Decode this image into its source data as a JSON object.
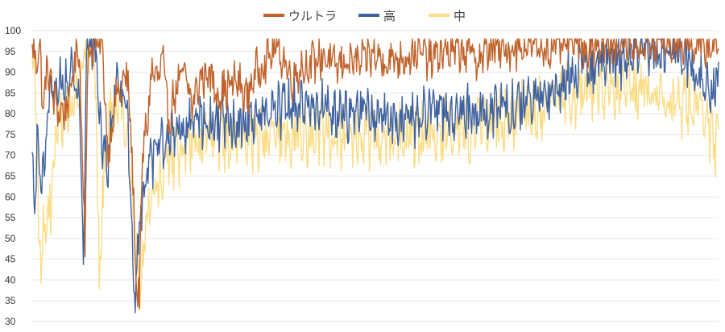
{
  "chart_data": {
    "type": "line",
    "title": "",
    "xlabel": "",
    "ylabel": "",
    "ylim": [
      30,
      100
    ],
    "yticks": [
      30,
      35,
      40,
      45,
      50,
      55,
      60,
      65,
      70,
      75,
      80,
      85,
      90,
      95,
      100
    ],
    "grid": "horizontal",
    "legend_position": "top-center",
    "sample_count": 860,
    "series": [
      {
        "name": "ウルトラ",
        "color": "#c0622a",
        "keypoints": [
          [
            0,
            95
          ],
          [
            5,
            93
          ],
          [
            10,
            96
          ],
          [
            14,
            79
          ],
          [
            18,
            92
          ],
          [
            22,
            88
          ],
          [
            28,
            83
          ],
          [
            35,
            80
          ],
          [
            45,
            82
          ],
          [
            52,
            90
          ],
          [
            56,
            97
          ],
          [
            60,
            90
          ],
          [
            66,
            49
          ],
          [
            70,
            95
          ],
          [
            80,
            97
          ],
          [
            88,
            96
          ],
          [
            94,
            72
          ],
          [
            98,
            74
          ],
          [
            104,
            84
          ],
          [
            112,
            86
          ],
          [
            118,
            90
          ],
          [
            124,
            75
          ],
          [
            130,
            40
          ],
          [
            134,
            35
          ],
          [
            138,
            70
          ],
          [
            144,
            78
          ],
          [
            150,
            91
          ],
          [
            156,
            88
          ],
          [
            164,
            93
          ],
          [
            170,
            78
          ],
          [
            180,
            86
          ],
          [
            190,
            90
          ],
          [
            200,
            82
          ],
          [
            210,
            88
          ],
          [
            220,
            90
          ],
          [
            232,
            85
          ],
          [
            244,
            86
          ],
          [
            256,
            88
          ],
          [
            268,
            84
          ],
          [
            280,
            90
          ],
          [
            292,
            93
          ],
          [
            305,
            96
          ],
          [
            315,
            93
          ],
          [
            325,
            88
          ],
          [
            335,
            91
          ],
          [
            350,
            92
          ],
          [
            365,
            94
          ],
          [
            380,
            91
          ],
          [
            395,
            93
          ],
          [
            410,
            92
          ],
          [
            425,
            94
          ],
          [
            440,
            93
          ],
          [
            455,
            93
          ],
          [
            470,
            94
          ],
          [
            485,
            95
          ],
          [
            500,
            93
          ],
          [
            515,
            95
          ],
          [
            530,
            95
          ],
          [
            545,
            95
          ],
          [
            560,
            93
          ],
          [
            575,
            96
          ],
          [
            590,
            95
          ],
          [
            605,
            96
          ],
          [
            620,
            97
          ],
          [
            635,
            96
          ],
          [
            650,
            96
          ],
          [
            665,
            97
          ],
          [
            680,
            97
          ],
          [
            695,
            96
          ],
          [
            710,
            97
          ],
          [
            725,
            96
          ],
          [
            740,
            97
          ],
          [
            755,
            97
          ],
          [
            770,
            96
          ],
          [
            785,
            97
          ],
          [
            800,
            97
          ],
          [
            815,
            97
          ],
          [
            830,
            97
          ],
          [
            845,
            96
          ],
          [
            859,
            97
          ]
        ],
        "amplitude": 7
      },
      {
        "name": "高",
        "color": "#3f62a0",
        "keypoints": [
          [
            0,
            68
          ],
          [
            3,
            57
          ],
          [
            6,
            72
          ],
          [
            10,
            64
          ],
          [
            14,
            65
          ],
          [
            18,
            76
          ],
          [
            22,
            84
          ],
          [
            28,
            86
          ],
          [
            34,
            88
          ],
          [
            40,
            86
          ],
          [
            46,
            90
          ],
          [
            52,
            92
          ],
          [
            56,
            86
          ],
          [
            60,
            82
          ],
          [
            64,
            44
          ],
          [
            68,
            95
          ],
          [
            74,
            97
          ],
          [
            80,
            96
          ],
          [
            84,
            80
          ],
          [
            88,
            70
          ],
          [
            94,
            68
          ],
          [
            100,
            78
          ],
          [
            106,
            88
          ],
          [
            112,
            82
          ],
          [
            118,
            80
          ],
          [
            124,
            60
          ],
          [
            128,
            33
          ],
          [
            134,
            52
          ],
          [
            140,
            62
          ],
          [
            146,
            66
          ],
          [
            154,
            70
          ],
          [
            162,
            73
          ],
          [
            170,
            73
          ],
          [
            178,
            76
          ],
          [
            186,
            78
          ],
          [
            196,
            77
          ],
          [
            206,
            78
          ],
          [
            216,
            78
          ],
          [
            226,
            78
          ],
          [
            240,
            77
          ],
          [
            255,
            77
          ],
          [
            270,
            79
          ],
          [
            285,
            79
          ],
          [
            300,
            80
          ],
          [
            315,
            81
          ],
          [
            330,
            82
          ],
          [
            345,
            82
          ],
          [
            360,
            82
          ],
          [
            375,
            81
          ],
          [
            390,
            80
          ],
          [
            405,
            80
          ],
          [
            420,
            80
          ],
          [
            435,
            79
          ],
          [
            450,
            79
          ],
          [
            465,
            79
          ],
          [
            480,
            79
          ],
          [
            495,
            80
          ],
          [
            510,
            80
          ],
          [
            525,
            80
          ],
          [
            540,
            80
          ],
          [
            555,
            80
          ],
          [
            570,
            80
          ],
          [
            585,
            81
          ],
          [
            600,
            81
          ],
          [
            615,
            82
          ],
          [
            630,
            83
          ],
          [
            645,
            85
          ],
          [
            660,
            87
          ],
          [
            675,
            89
          ],
          [
            690,
            91
          ],
          [
            705,
            92
          ],
          [
            720,
            93
          ],
          [
            735,
            93
          ],
          [
            750,
            94
          ],
          [
            765,
            95
          ],
          [
            780,
            95
          ],
          [
            795,
            94
          ],
          [
            810,
            94
          ],
          [
            825,
            92
          ],
          [
            840,
            88
          ],
          [
            852,
            87
          ],
          [
            859,
            91
          ]
        ],
        "amplitude": 9
      },
      {
        "name": "中",
        "color": "#fbdd87",
        "keypoints": [
          [
            0,
            92
          ],
          [
            4,
            90
          ],
          [
            8,
            55
          ],
          [
            12,
            44
          ],
          [
            16,
            55
          ],
          [
            20,
            54
          ],
          [
            24,
            60
          ],
          [
            30,
            75
          ],
          [
            36,
            80
          ],
          [
            42,
            80
          ],
          [
            48,
            82
          ],
          [
            52,
            86
          ],
          [
            56,
            84
          ],
          [
            60,
            80
          ],
          [
            64,
            90
          ],
          [
            68,
            96
          ],
          [
            74,
            95
          ],
          [
            80,
            82
          ],
          [
            84,
            40
          ],
          [
            88,
            60
          ],
          [
            94,
            75
          ],
          [
            100,
            80
          ],
          [
            106,
            84
          ],
          [
            112,
            82
          ],
          [
            118,
            76
          ],
          [
            124,
            65
          ],
          [
            128,
            55
          ],
          [
            132,
            42
          ],
          [
            136,
            36
          ],
          [
            140,
            48
          ],
          [
            144,
            54
          ],
          [
            150,
            60
          ],
          [
            156,
            63
          ],
          [
            162,
            66
          ],
          [
            170,
            68
          ],
          [
            180,
            70
          ],
          [
            190,
            71
          ],
          [
            200,
            72
          ],
          [
            212,
            73
          ],
          [
            225,
            74
          ],
          [
            240,
            74
          ],
          [
            255,
            74
          ],
          [
            270,
            74
          ],
          [
            285,
            74
          ],
          [
            300,
            75
          ],
          [
            315,
            75
          ],
          [
            330,
            75
          ],
          [
            345,
            75
          ],
          [
            360,
            75
          ],
          [
            375,
            75
          ],
          [
            390,
            75
          ],
          [
            405,
            75
          ],
          [
            420,
            75
          ],
          [
            435,
            75
          ],
          [
            450,
            75
          ],
          [
            465,
            75
          ],
          [
            480,
            75
          ],
          [
            495,
            75
          ],
          [
            510,
            76
          ],
          [
            525,
            76
          ],
          [
            540,
            76
          ],
          [
            555,
            77
          ],
          [
            570,
            77
          ],
          [
            585,
            78
          ],
          [
            600,
            79
          ],
          [
            615,
            80
          ],
          [
            630,
            81
          ],
          [
            645,
            82
          ],
          [
            660,
            84
          ],
          [
            675,
            85
          ],
          [
            690,
            86
          ],
          [
            705,
            86
          ],
          [
            720,
            87
          ],
          [
            735,
            87
          ],
          [
            750,
            87
          ],
          [
            765,
            86
          ],
          [
            780,
            85
          ],
          [
            795,
            84
          ],
          [
            810,
            83
          ],
          [
            825,
            82
          ],
          [
            840,
            80
          ],
          [
            852,
            74
          ],
          [
            859,
            73
          ]
        ],
        "amplitude": 11
      }
    ]
  }
}
